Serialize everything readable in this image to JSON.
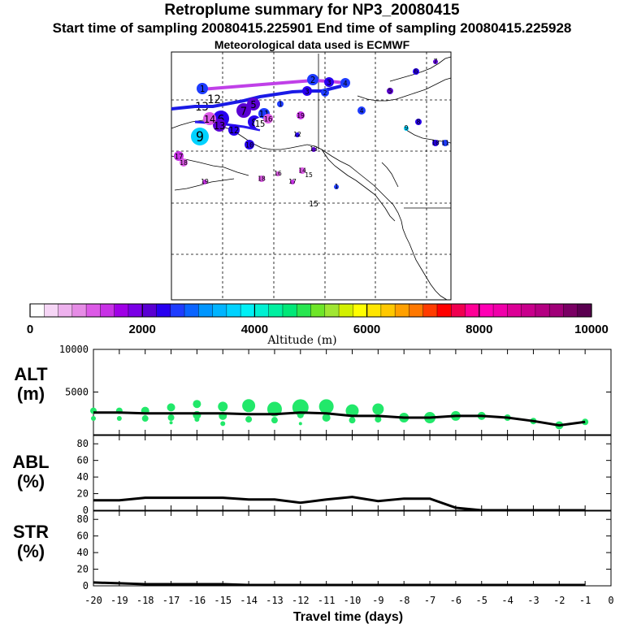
{
  "header": {
    "title": "Retroplume summary for NP3_20080415",
    "sampling": "Start time of sampling 20080415.225901     End time of sampling 20080415.225928",
    "met": "Meteorological data used is ECMWF"
  },
  "colorbar": {
    "label": "Altitude (m)",
    "ticks": [
      "0",
      "2000",
      "4000",
      "6000",
      "8000",
      "10000"
    ],
    "colors": [
      "#ffffff",
      "#f6d6f6",
      "#eeb2ee",
      "#e68ce6",
      "#dc5ae6",
      "#c832e6",
      "#a000e6",
      "#7a00e6",
      "#5a00d2",
      "#2800f0",
      "#1e3cff",
      "#0a64ff",
      "#0096ff",
      "#00b4ff",
      "#00d2ff",
      "#00f0f5",
      "#00f0d2",
      "#00f0a0",
      "#00e878",
      "#28e650",
      "#6ee628",
      "#a0e632",
      "#d2f000",
      "#ffff00",
      "#ffe600",
      "#ffc800",
      "#ffa000",
      "#ff7800",
      "#ff3c00",
      "#ff0000",
      "#f00050",
      "#ff0096",
      "#ff00b4",
      "#f000aa",
      "#dc0096",
      "#c8008c",
      "#b40082",
      "#a00078",
      "#7a0064",
      "#5a0050"
    ]
  },
  "plume_labels": [
    {
      "label": "1",
      "alt": 2500
    },
    {
      "label": "2",
      "alt": 2500
    },
    {
      "label": "3",
      "alt": 2400
    },
    {
      "label": "4",
      "alt": 2600
    },
    {
      "label": "5",
      "alt": 2200
    },
    {
      "label": "6",
      "alt": 2300
    },
    {
      "label": "7",
      "alt": 2200
    },
    {
      "label": "8",
      "alt": 2400
    },
    {
      "label": "9",
      "alt": 3600
    },
    {
      "label": "10",
      "alt": 2300
    },
    {
      "label": "11",
      "alt": 2500
    },
    {
      "label": "12",
      "alt": 2400
    },
    {
      "label": "13",
      "alt": 2000
    },
    {
      "label": "14",
      "alt": 1200
    },
    {
      "label": "15",
      "alt": 200
    },
    {
      "label": "16",
      "alt": 1100
    },
    {
      "label": "17",
      "alt": 1300
    },
    {
      "label": "18",
      "alt": 1100
    },
    {
      "label": "19",
      "alt": 1300
    }
  ],
  "map_annotations": [
    "12",
    "13",
    "15"
  ],
  "chart_data": [
    {
      "type": "line",
      "panel": "ALT",
      "ylabel": "ALT\n(m)",
      "ylabel_lines": [
        "ALT",
        "(m)"
      ],
      "ylim": [
        0,
        10000
      ],
      "yticks": [
        5000,
        10000
      ],
      "xlim": [
        -20,
        0
      ],
      "x": [
        -20,
        -19,
        -18,
        -17,
        -16,
        -15,
        -14,
        -13,
        -12,
        -11,
        -10,
        -9,
        -8,
        -7,
        -6,
        -5,
        -4,
        -3,
        -2,
        -1
      ],
      "values": [
        2600,
        2600,
        2500,
        2500,
        2500,
        2500,
        2400,
        2400,
        2600,
        2500,
        2200,
        2200,
        2000,
        2000,
        2200,
        2200,
        2000,
        1600,
        1100,
        1500
      ],
      "bubbles": [
        {
          "x": -20,
          "alt": 2800,
          "size": 4
        },
        {
          "x": -20,
          "alt": 1900,
          "size": 3
        },
        {
          "x": -19,
          "alt": 2800,
          "size": 4
        },
        {
          "x": -19,
          "alt": 1900,
          "size": 3
        },
        {
          "x": -18,
          "alt": 2800,
          "size": 5
        },
        {
          "x": -18,
          "alt": 1900,
          "size": 4
        },
        {
          "x": -17,
          "alt": 3200,
          "size": 5
        },
        {
          "x": -17,
          "alt": 2000,
          "size": 4
        },
        {
          "x": -17,
          "alt": 1400,
          "size": 2
        },
        {
          "x": -16,
          "alt": 3600,
          "size": 5
        },
        {
          "x": -16,
          "alt": 2300,
          "size": 5
        },
        {
          "x": -16,
          "alt": 1800,
          "size": 3
        },
        {
          "x": -15,
          "alt": 3300,
          "size": 6
        },
        {
          "x": -15,
          "alt": 2200,
          "size": 5
        },
        {
          "x": -15,
          "alt": 1300,
          "size": 3
        },
        {
          "x": -14,
          "alt": 3400,
          "size": 8
        },
        {
          "x": -14,
          "alt": 1800,
          "size": 4
        },
        {
          "x": -13,
          "alt": 3000,
          "size": 9
        },
        {
          "x": -13,
          "alt": 1700,
          "size": 4
        },
        {
          "x": -12,
          "alt": 3200,
          "size": 10
        },
        {
          "x": -12,
          "alt": 2300,
          "size": 4
        },
        {
          "x": -12,
          "alt": 1300,
          "size": 2
        },
        {
          "x": -11,
          "alt": 3300,
          "size": 9
        },
        {
          "x": -11,
          "alt": 2000,
          "size": 5
        },
        {
          "x": -10,
          "alt": 2800,
          "size": 8
        },
        {
          "x": -10,
          "alt": 1700,
          "size": 4
        },
        {
          "x": -9,
          "alt": 3000,
          "size": 7
        },
        {
          "x": -9,
          "alt": 1800,
          "size": 4
        },
        {
          "x": -8,
          "alt": 2000,
          "size": 6
        },
        {
          "x": -7,
          "alt": 2000,
          "size": 7
        },
        {
          "x": -6,
          "alt": 2200,
          "size": 6
        },
        {
          "x": -5,
          "alt": 2200,
          "size": 5
        },
        {
          "x": -4,
          "alt": 2000,
          "size": 4
        },
        {
          "x": -3,
          "alt": 1600,
          "size": 4
        },
        {
          "x": -2,
          "alt": 1100,
          "size": 5
        },
        {
          "x": -1,
          "alt": 1500,
          "size": 4
        }
      ]
    },
    {
      "type": "line",
      "panel": "ABL",
      "ylabel": "ABL\n(%)",
      "ylabel_lines": [
        "ABL",
        "(%)"
      ],
      "ylim": [
        0,
        90
      ],
      "yticks": [
        0,
        20,
        40,
        60,
        80
      ],
      "xlim": [
        -20,
        0
      ],
      "x": [
        -20,
        -19,
        -18,
        -17,
        -16,
        -15,
        -14,
        -13,
        -12,
        -11,
        -10,
        -9,
        -8,
        -7,
        -6,
        -5,
        -4,
        -3,
        -2,
        -1
      ],
      "values": [
        12,
        12,
        15,
        15,
        15,
        15,
        13,
        13,
        9,
        13,
        16,
        11,
        14,
        14,
        3,
        0,
        0,
        0,
        0,
        0
      ]
    },
    {
      "type": "line",
      "panel": "STR",
      "ylabel": "STR\n(%)",
      "ylabel_lines": [
        "STR",
        "(%)"
      ],
      "ylim": [
        0,
        90
      ],
      "yticks": [
        0,
        20,
        40,
        60,
        80
      ],
      "xlim": [
        -20,
        0
      ],
      "xlabel": "Travel time (days)",
      "xticks": [
        -20,
        -19,
        -18,
        -17,
        -16,
        -15,
        -14,
        -13,
        -12,
        -11,
        -10,
        -9,
        -8,
        -7,
        -6,
        -5,
        -4,
        -3,
        -2,
        -1,
        0
      ],
      "x": [
        -20,
        -19,
        -18,
        -17,
        -16,
        -15,
        -14,
        -13,
        -12,
        -11,
        -10,
        -9,
        -8,
        -7,
        -6,
        -5,
        -4,
        -3,
        -2,
        -1
      ],
      "values": [
        4,
        3,
        2,
        2,
        2,
        2,
        1,
        1,
        1,
        1,
        1,
        1,
        1,
        1,
        1,
        1,
        1,
        1,
        1,
        1
      ]
    }
  ]
}
